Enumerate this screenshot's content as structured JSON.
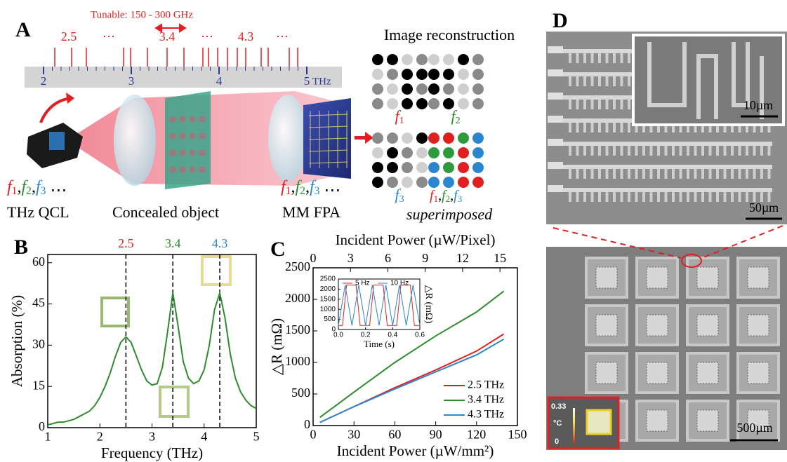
{
  "panel_a": {
    "label": "A",
    "tunable": "Tunable: 150 - 300 GHz",
    "ruler_ticks": [
      2,
      3,
      4,
      5
    ],
    "ruler_unit": "THz",
    "line_labels": [
      "2.5",
      "⋯",
      "3.4",
      "⋯",
      "4.3",
      "⋯"
    ],
    "freq_symbol": "f",
    "freq_indices": [
      "1",
      "2",
      "3"
    ],
    "separator": ",",
    "ellipsis": "⋯",
    "source": "THz QCL",
    "object": "Concealed object",
    "detector": "MM FPA",
    "reconstruction": "Image reconstruction",
    "superimposed": "superimposed"
  },
  "panel_d": {
    "label": "D",
    "scale_inset": "10µm",
    "scale_top": "50µm",
    "scale_bottom": "500µm",
    "colorbar_max": 0.33,
    "colorbar_unit": "°C",
    "colorbar_min": 0
  },
  "chart_data": [
    {
      "type": "line",
      "panel": "B",
      "xlabel": "Frequency (THz)",
      "ylabel": "Absorption (%)",
      "x": [
        1.0,
        1.1,
        1.2,
        1.3,
        1.4,
        1.5,
        1.6,
        1.7,
        1.8,
        1.9,
        2.0,
        2.1,
        2.2,
        2.3,
        2.4,
        2.5,
        2.6,
        2.7,
        2.8,
        2.9,
        3.0,
        3.1,
        3.2,
        3.3,
        3.4,
        3.5,
        3.6,
        3.7,
        3.8,
        3.9,
        4.0,
        4.1,
        4.2,
        4.3,
        4.4,
        4.5,
        4.6,
        4.7,
        4.8,
        4.9,
        5.0
      ],
      "series": [
        {
          "color": "#2e8b2e",
          "values": [
            1,
            1.5,
            2,
            2,
            2.5,
            3,
            4,
            5,
            6,
            8,
            11,
            15,
            20,
            26,
            31,
            33,
            31,
            26,
            21,
            17,
            15.5,
            16,
            22,
            35,
            49,
            37,
            24,
            18,
            16,
            17,
            21,
            30,
            43,
            49,
            40,
            27,
            18,
            13,
            10,
            8,
            7
          ]
        }
      ],
      "xlim": [
        1,
        5
      ],
      "ylim": [
        0,
        63
      ],
      "xticks": [
        1,
        2,
        3,
        4,
        5
      ],
      "yticks": [
        0,
        15,
        30,
        45,
        60
      ],
      "vlines": [
        2.5,
        3.4,
        4.3
      ],
      "vline_colors": [
        "#e02020",
        "#2e8b2e",
        "#2b86d0"
      ]
    },
    {
      "type": "line",
      "panel": "C",
      "xlabel": "Incident Power (µW/mm²)",
      "x2label": "Incident Power (µW/Pixel)",
      "ylabel": "△R (mΩ)",
      "x": [
        5,
        30,
        60,
        90,
        120,
        140
      ],
      "series": [
        {
          "name": "2.5 THz",
          "color": "#e02020",
          "values": [
            50,
            300,
            600,
            880,
            1180,
            1450
          ]
        },
        {
          "name": "3.4 THz",
          "color": "#2e8b2e",
          "values": [
            130,
            530,
            1000,
            1420,
            1800,
            2130
          ]
        },
        {
          "name": "4.3 THz",
          "color": "#2b86d0",
          "values": [
            50,
            300,
            580,
            850,
            1120,
            1370
          ]
        }
      ],
      "xlim": [
        0,
        150
      ],
      "xticks": [
        0,
        30,
        60,
        90,
        120,
        150
      ],
      "x2lim": [
        0,
        16.4
      ],
      "x2ticks": [
        0,
        3,
        6,
        9,
        12,
        15
      ],
      "ylim": [
        0,
        2500
      ],
      "yticks": [
        0,
        500,
        1000,
        1500,
        2000,
        2500
      ],
      "legend": "lower right"
    },
    {
      "type": "line",
      "xlabel": "Time (s)",
      "ylabel": "△R (mΩ)",
      "series": [
        {
          "name": "5 Hz",
          "color": "#e02020",
          "x": [
            0,
            0.03,
            0.06,
            0.13,
            0.16,
            0.23,
            0.26,
            0.33,
            0.36,
            0.43,
            0.46,
            0.53,
            0.56,
            0.6
          ],
          "values": [
            200,
            200,
            2200,
            2200,
            200,
            200,
            2200,
            2200,
            200,
            200,
            2200,
            2200,
            200,
            200
          ]
        },
        {
          "name": "10 Hz",
          "color": "#2b86d0",
          "x": [
            0,
            0.05,
            0.1,
            0.15,
            0.2,
            0.25,
            0.3,
            0.35,
            0.4,
            0.45,
            0.5,
            0.55,
            0.6
          ],
          "values": [
            200,
            2200,
            200,
            2200,
            200,
            2200,
            200,
            2200,
            200,
            2200,
            200,
            2200,
            200
          ]
        }
      ],
      "xlim": [
        0,
        0.6
      ],
      "xticks": [
        {
          "value": 0,
          "label": "0.0"
        },
        0.2,
        0.4,
        0.6
      ],
      "ylim": [
        0,
        2500
      ],
      "yticks": [
        0,
        500,
        1000,
        1500,
        2000,
        2500
      ],
      "legend": "upper center"
    }
  ]
}
